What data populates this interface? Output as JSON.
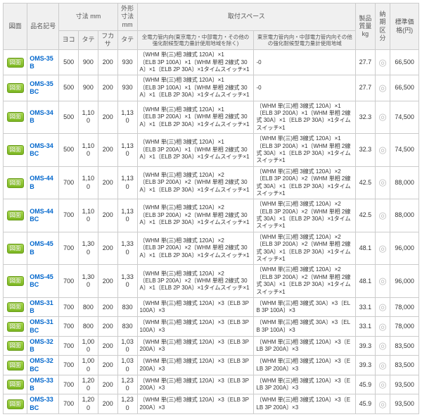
{
  "header": {
    "zumen": "図面",
    "model": "品名記号",
    "dim_group": "寸法 mm",
    "outer_group": "外形寸法 mm",
    "yoko": "ヨコ",
    "tate": "タテ",
    "fukasa": "フカサ",
    "tate2": "タテ",
    "space_group": "取付スペース",
    "space1": "全電力管内向(東京電力・中部電力・その他の強化耐候型電力量計使用地域を除く)",
    "space2": "東京電力管内向・中部電力管内向その他の強化耐候型電力量計使用地域",
    "weight": "製品質量 kg",
    "lead": "納期区分",
    "price": "標準価格(円)"
  },
  "btn_label": "図面",
  "circle": "◎",
  "rows": [
    {
      "model": "OMS-35B",
      "yoko": "500",
      "tate": "900",
      "fukasa": "200",
      "t2": "930",
      "d1": "〔WHM 単(三)相 3線式 120A〕×1\n〔ELB 3P 100A〕×1〔WHM 単相 2線式 30A〕×1〔ELB 2P 30A〕×1タイムスイッチ×1",
      "d2": "-0",
      "wt": "27.7",
      "pr": "66,500"
    },
    {
      "model": "OMS-35BC",
      "yoko": "500",
      "tate": "900",
      "fukasa": "200",
      "t2": "930",
      "d1": "〔WHM 単(三)相 3線式 120A〕×1\n〔ELB 3P 100A〕×1〔WHM 単相 2線式 30A〕×1〔ELB 2P 30A〕×1タイムスイッチ×1",
      "d2": "-0",
      "wt": "27.7",
      "pr": "66,500"
    },
    {
      "model": "OMS-34B",
      "yoko": "500",
      "tate": "1,100",
      "fukasa": "200",
      "t2": "1,130",
      "d1": "〔WHM 単(三)相 3線式 120A〕×1\n〔ELB 3P 200A〕×1〔WHM 単相 2線式 30A〕×1〔ELB 2P 30A〕×1タイムスイッチ×1",
      "d2": "〔WHM 単(三)相 3線式 120A〕×1\n〔ELB 3P 200A〕×1〔WHM 単相 2線式 30A〕×1〔ELB 2P 30A〕×1タイムスイッチ×1",
      "wt": "32.3",
      "pr": "74,500"
    },
    {
      "model": "OMS-34BC",
      "yoko": "500",
      "tate": "1,100",
      "fukasa": "200",
      "t2": "1,130",
      "d1": "〔WHM 単(三)相 3線式 120A〕×1\n〔ELB 3P 200A〕×1〔WHM 単相 2線式 30A〕×1〔ELB 2P 30A〕×1タイムスイッチ×1",
      "d2": "〔WHM 単(三)相 3線式 120A〕×1\n〔ELB 3P 200A〕×1〔WHM 単相 2線式 30A〕×1〔ELB 2P 30A〕×1タイムスイッチ×1",
      "wt": "32.3",
      "pr": "74,500"
    },
    {
      "model": "OMS-44B",
      "yoko": "700",
      "tate": "1,100",
      "fukasa": "200",
      "t2": "1,130",
      "d1": "〔WHM 単(三)相 3線式 120A〕×2\n〔ELB 3P 200A〕×2〔WHM 単相 2線式 30A〕×1〔ELB 2P 30A〕×1タイムスイッチ×1",
      "d2": "〔WHM 単(三)相 3線式 120A〕×2\n〔ELB 3P 200A〕×2〔WHM 単相 2線式 30A〕×1〔ELB 2P 30A〕×1タイムスイッチ×1",
      "wt": "42.5",
      "pr": "88,000"
    },
    {
      "model": "OMS-44BC",
      "yoko": "700",
      "tate": "1,100",
      "fukasa": "200",
      "t2": "1,130",
      "d1": "〔WHM 単(三)相 3線式 120A〕×2\n〔ELB 3P 200A〕×2〔WHM 単相 2線式 30A〕×1〔ELB 2P 30A〕×1タイムスイッチ×1",
      "d2": "〔WHM 単(三)相 3線式 120A〕×2\n〔ELB 3P 200A〕×2〔WHM 単相 2線式 30A〕×1〔ELB 2P 30A〕×1タイムスイッチ×1",
      "wt": "42.5",
      "pr": "88,000"
    },
    {
      "model": "OMS-45B",
      "yoko": "700",
      "tate": "1,300",
      "fukasa": "200",
      "t2": "1,330",
      "d1": "〔WHM 単(三)相 3線式 120A〕×2\n〔ELB 3P 200A〕×2〔WHM 単相 2線式 30A〕×1〔ELB 2P 30A〕×1タイムスイッチ×1",
      "d2": "〔WHM 単(三)相 3線式 120A〕×2\n〔ELB 3P 200A〕×2〔WHM 単相 2線式 30A〕×1〔ELB 2P 30A〕×1タイムスイッチ×1",
      "wt": "48.1",
      "pr": "96,000"
    },
    {
      "model": "OMS-45BC",
      "yoko": "700",
      "tate": "1,300",
      "fukasa": "200",
      "t2": "1,330",
      "d1": "〔WHM 単(三)相 3線式 120A〕×2\n〔ELB 3P 200A〕×2〔WHM 単相 2線式 30A〕×1〔ELB 2P 30A〕×1タイムスイッチ×1",
      "d2": "〔WHM 単(三)相 3線式 120A〕×2\n〔ELB 3P 200A〕×2〔WHM 単相 2線式 30A〕×1〔ELB 2P 30A〕×1タイムスイッチ×1",
      "wt": "48.1",
      "pr": "96,000"
    },
    {
      "model": "OMS-31B",
      "yoko": "700",
      "tate": "800",
      "fukasa": "200",
      "t2": "830",
      "d1": "〔WHM 単(三)相 3線式 120A〕×3〔ELB 3P 100A〕×3",
      "d2": "〔WHM 単(三)相 3線式 30A〕×3〔ELB 3P 100A〕×3",
      "wt": "33.1",
      "pr": "78,000"
    },
    {
      "model": "OMS-31BC",
      "yoko": "700",
      "tate": "800",
      "fukasa": "200",
      "t2": "830",
      "d1": "〔WHM 単(三)相 3線式 120A〕×3〔ELB 3P 100A〕×3",
      "d2": "〔WHM 単(三)相 3線式 30A〕×3〔ELB 3P 100A〕×3",
      "wt": "33.1",
      "pr": "78,000"
    },
    {
      "model": "OMS-32B",
      "yoko": "700",
      "tate": "1,000",
      "fukasa": "200",
      "t2": "1,030",
      "d1": "〔WHM 単(三)相 3線式 120A〕×3〔ELB 3P 200A〕×3",
      "d2": "〔WHM 単(三)相 3線式 120A〕×3〔ELB 3P 200A〕×3",
      "wt": "39.3",
      "pr": "83,500"
    },
    {
      "model": "OMS-32BC",
      "yoko": "700",
      "tate": "1,000",
      "fukasa": "200",
      "t2": "1,030",
      "d1": "〔WHM 単(三)相 3線式 120A〕×3〔ELB 3P 200A〕×3",
      "d2": "〔WHM 単(三)相 3線式 120A〕×3〔ELB 3P 200A〕×3",
      "wt": "39.3",
      "pr": "83,500"
    },
    {
      "model": "OMS-33B",
      "yoko": "700",
      "tate": "1,200",
      "fukasa": "200",
      "t2": "1,230",
      "d1": "〔WHM 単(三)相 3線式 120A〕×3〔ELB 3P 200A〕×3",
      "d2": "〔WHM 単(三)相 3線式 120A〕×3〔ELB 3P 200A〕×3",
      "wt": "45.9",
      "pr": "93,500"
    },
    {
      "model": "OMS-33BC",
      "yoko": "700",
      "tate": "1,200",
      "fukasa": "200",
      "t2": "1,230",
      "d1": "〔WHM 単(三)相 3線式 120A〕×3〔ELB 3P 200A〕×3",
      "d2": "〔WHM 単(三)相 3線式 120A〕×3〔ELB 3P 200A〕×3",
      "wt": "45.9",
      "pr": "93,500"
    }
  ]
}
